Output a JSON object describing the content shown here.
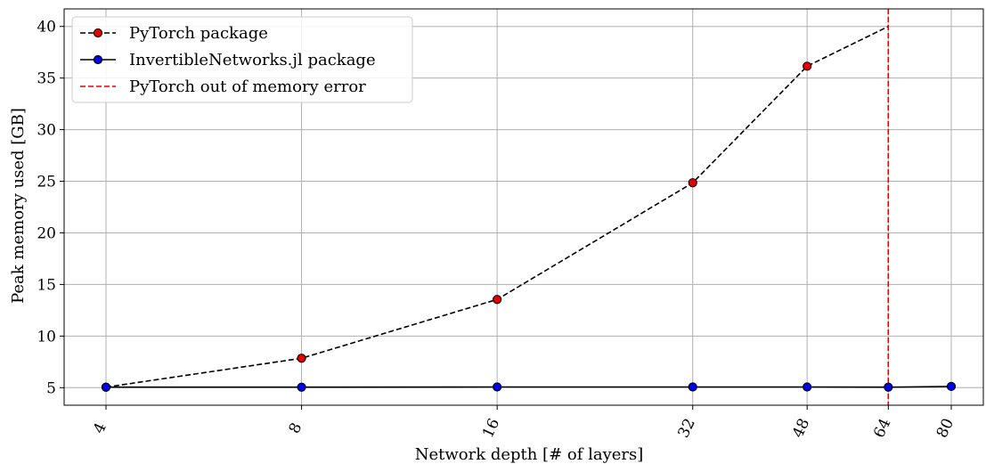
{
  "chart_data": {
    "type": "line",
    "xlabel": "Network depth [# of layers]",
    "ylabel": "Peak memory used [GB]",
    "x_ticks": [
      4,
      8,
      16,
      32,
      48,
      64,
      80
    ],
    "x_scale": "log",
    "xlim": [
      4,
      80
    ],
    "ylim": [
      3.3,
      41.7
    ],
    "y_ticks": [
      5,
      10,
      15,
      20,
      25,
      30,
      35,
      40
    ],
    "grid": true,
    "legend_position": "top-left",
    "series": [
      {
        "name": "PyTorch package",
        "color": "#000000",
        "marker_color": "#e00000",
        "linestyle": "dashed",
        "x": [
          4,
          8,
          16,
          32,
          48,
          64
        ],
        "y": [
          5.05,
          7.85,
          13.55,
          24.85,
          36.15,
          40.0
        ],
        "markers": [
          true,
          true,
          true,
          true,
          true,
          false
        ]
      },
      {
        "name": "InvertibleNetworks.jl package",
        "color": "#000000",
        "marker_color": "#0000e0",
        "linestyle": "solid",
        "x": [
          4,
          8,
          16,
          32,
          48,
          64,
          80
        ],
        "y": [
          5.05,
          5.05,
          5.07,
          5.07,
          5.07,
          5.05,
          5.12
        ],
        "markers": [
          true,
          true,
          true,
          true,
          true,
          true,
          true
        ]
      }
    ],
    "vlines": [
      {
        "name": "PyTorch out of memory error",
        "x": 64,
        "color": "#e00000",
        "linestyle": "dashed"
      }
    ]
  }
}
